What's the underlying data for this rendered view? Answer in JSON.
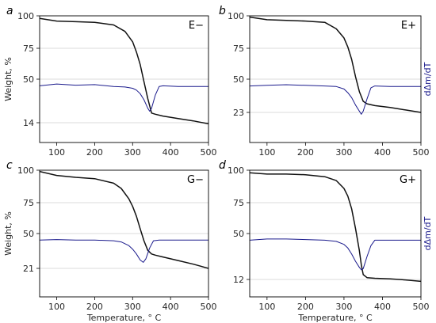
{
  "chart_data": [
    {
      "type": "line",
      "panel_letter": "a",
      "panel_tag": "E−",
      "ylabel": "Weight, %",
      "right_ylabel": "",
      "xlabel": "",
      "xlim": [
        55,
        500
      ],
      "xticks": [
        "100",
        "200",
        "300",
        "400",
        "500"
      ],
      "yticks": [
        "100",
        "75",
        "50",
        "14"
      ],
      "grid": true,
      "series": [
        {
          "color": "#111111",
          "x": [
            55,
            100,
            150,
            200,
            250,
            280,
            300,
            310,
            320,
            330,
            340,
            350,
            360,
            380,
            420,
            460,
            500
          ],
          "y": [
            98,
            96,
            95.5,
            95,
            93,
            88,
            80,
            72,
            62,
            48,
            34,
            22,
            21,
            19.5,
            17.5,
            15.5,
            13.5
          ]
        },
        {
          "color": "#1a1a8c",
          "x": [
            55,
            100,
            150,
            200,
            250,
            280,
            300,
            310,
            320,
            330,
            340,
            345,
            350,
            360,
            370,
            380,
            420,
            460,
            500
          ],
          "y": [
            44.5,
            46,
            45,
            45.5,
            44,
            43.5,
            42.5,
            41,
            38,
            33,
            26,
            23.5,
            26,
            37,
            44,
            44.5,
            44,
            44,
            44
          ]
        }
      ]
    },
    {
      "type": "line",
      "panel_letter": "b",
      "panel_tag": "E+",
      "ylabel": "",
      "right_ylabel": "dΔm/dT",
      "xlabel": "",
      "xlim": [
        55,
        500
      ],
      "xticks": [
        "100",
        "200",
        "300",
        "400",
        "500"
      ],
      "yticks": [
        "100",
        "75",
        "50",
        "23"
      ],
      "grid": true,
      "series": [
        {
          "color": "#111111",
          "x": [
            55,
            100,
            150,
            200,
            250,
            280,
            300,
            310,
            320,
            330,
            340,
            350,
            360,
            380,
            420,
            460,
            500
          ],
          "y": [
            99,
            97,
            96.5,
            96,
            95,
            90,
            83,
            76,
            66,
            52,
            40,
            32,
            30,
            28.5,
            27,
            25,
            23
          ]
        },
        {
          "color": "#1a1a8c",
          "x": [
            55,
            100,
            150,
            200,
            250,
            280,
            300,
            310,
            320,
            330,
            340,
            345,
            350,
            360,
            370,
            380,
            420,
            460,
            500
          ],
          "y": [
            44.5,
            45,
            45.5,
            45,
            44.5,
            44,
            42,
            39,
            35,
            29,
            24,
            22,
            24,
            34,
            43,
            44.5,
            44,
            44,
            44
          ]
        }
      ]
    },
    {
      "type": "line",
      "panel_letter": "c",
      "panel_tag": "G−",
      "ylabel": "Weight, %",
      "right_ylabel": "",
      "xlabel": "Temperature, ° C",
      "xlim": [
        55,
        500
      ],
      "xticks": [
        "100",
        "200",
        "300",
        "400",
        "500"
      ],
      "yticks": [
        "100",
        "75",
        "50",
        "21"
      ],
      "grid": true,
      "series": [
        {
          "color": "#111111",
          "x": [
            55,
            100,
            150,
            200,
            250,
            270,
            290,
            300,
            310,
            320,
            330,
            340,
            350,
            360,
            380,
            420,
            460,
            500
          ],
          "y": [
            99,
            96,
            94.5,
            93.5,
            90,
            86,
            78,
            72,
            64,
            54,
            44,
            36,
            33,
            32,
            30.5,
            27.5,
            24.5,
            21
          ]
        },
        {
          "color": "#1a1a8c",
          "x": [
            55,
            100,
            150,
            200,
            250,
            270,
            290,
            300,
            310,
            320,
            328,
            335,
            345,
            355,
            370,
            420,
            460,
            500
          ],
          "y": [
            44.5,
            45,
            44.5,
            44.5,
            44,
            43,
            40,
            37,
            33,
            28,
            26,
            29,
            38,
            44,
            44.5,
            44.5,
            44.5,
            44.5
          ]
        }
      ]
    },
    {
      "type": "line",
      "panel_letter": "d",
      "panel_tag": "G+",
      "ylabel": "",
      "right_ylabel": "dΔm/dT",
      "xlabel": "Temperature, ° C",
      "xlim": [
        55,
        500
      ],
      "xticks": [
        "100",
        "200",
        "300",
        "400",
        "500"
      ],
      "yticks": [
        "100",
        "75",
        "50",
        "12"
      ],
      "grid": true,
      "series": [
        {
          "color": "#111111",
          "x": [
            55,
            100,
            150,
            200,
            250,
            280,
            300,
            310,
            320,
            330,
            340,
            345,
            350,
            360,
            380,
            420,
            460,
            500
          ],
          "y": [
            98,
            97,
            97,
            96.5,
            95,
            92,
            86,
            80,
            70,
            54,
            36,
            24,
            16,
            13.5,
            13,
            12.5,
            11.8,
            11.2
          ]
        },
        {
          "color": "#1a1a8c",
          "x": [
            55,
            100,
            150,
            200,
            250,
            280,
            300,
            310,
            320,
            330,
            340,
            345,
            350,
            360,
            370,
            380,
            420,
            460,
            500
          ],
          "y": [
            44.5,
            45.5,
            45.5,
            45,
            44.5,
            43.5,
            41,
            38,
            33,
            27,
            22,
            20,
            21,
            31,
            40,
            44.5,
            44.5,
            44.5,
            44.5
          ]
        }
      ]
    }
  ]
}
